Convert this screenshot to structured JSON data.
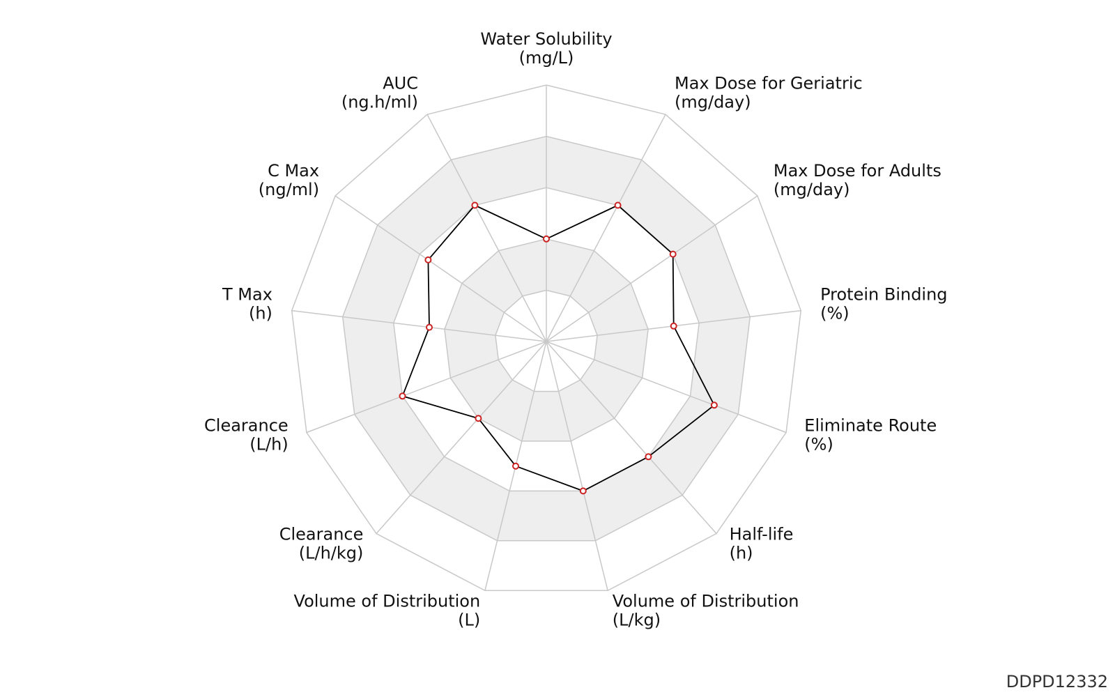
{
  "chart_data": {
    "type": "radar",
    "axes": [
      {
        "name": "Water Solubility",
        "unit": "(mg/L)"
      },
      {
        "name": "Max Dose for Geriatric",
        "unit": "(mg/day)"
      },
      {
        "name": "Max Dose for Adults",
        "unit": "(mg/day)"
      },
      {
        "name": "Protein Binding",
        "unit": "(%)"
      },
      {
        "name": "Eliminate Route",
        "unit": "(%)"
      },
      {
        "name": "Half-life",
        "unit": "(h)"
      },
      {
        "name": "Volume of Distribution",
        "unit": "(L/kg)"
      },
      {
        "name": "Volume of Distribution",
        "unit": "(L)"
      },
      {
        "name": "Clearance",
        "unit": "(L/h/kg)"
      },
      {
        "name": "Clearance",
        "unit": "(L/h)"
      },
      {
        "name": "T Max",
        "unit": "(h)"
      },
      {
        "name": "C Max",
        "unit": "(ng/ml)"
      },
      {
        "name": "AUC",
        "unit": "(ng.h/ml)"
      }
    ],
    "rings": 5,
    "range": [
      0,
      5
    ],
    "grid": true,
    "series": [
      {
        "values": [
          2.0,
          3.0,
          3.0,
          2.5,
          3.5,
          3.0,
          3.0,
          2.5,
          2.0,
          3.0,
          2.3,
          2.8,
          3.0
        ]
      }
    ]
  },
  "footer": {
    "code": "DDPD12332"
  },
  "colors": {
    "grid": "#c8c8c8",
    "band": "#eeeeee",
    "line": "#000000",
    "marker": "#cc2222"
  }
}
